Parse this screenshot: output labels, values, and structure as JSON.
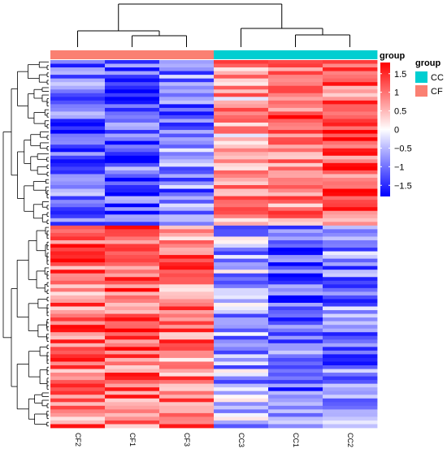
{
  "chart_data": {
    "type": "heatmap",
    "title": "",
    "columns": [
      "CF2",
      "CF1",
      "CF3",
      "CC3",
      "CC1",
      "CC2"
    ],
    "column_groups": [
      "CF",
      "CF",
      "CF",
      "CC",
      "CC",
      "CC"
    ],
    "annotation_title": "group",
    "legend_annotation": {
      "title": "group",
      "entries": [
        {
          "label": "CC",
          "color": "#00CED1"
        },
        {
          "label": "CF",
          "color": "#FA8072"
        }
      ]
    },
    "colorbar": {
      "ticks": [
        1.5,
        1,
        0.5,
        0,
        -0.5,
        -1,
        -1.5
      ],
      "tick_labels": [
        "1.5",
        "1",
        "0.5",
        "0",
        "−0.5",
        "−1",
        "−1.5"
      ],
      "range": [
        -1.8,
        1.8
      ],
      "low_color": "#0000FF",
      "mid_color": "#FFFFFF",
      "high_color": "#FF0000"
    },
    "row_count": 100,
    "block_a_rows": 45,
    "block_a_profile": [
      -1.1,
      -1.2,
      -0.9,
      0.6,
      1.0,
      1.1
    ],
    "block_b_profile": [
      1.0,
      1.1,
      0.9,
      -0.6,
      -1.1,
      -0.9
    ],
    "legend_placement": "right"
  }
}
